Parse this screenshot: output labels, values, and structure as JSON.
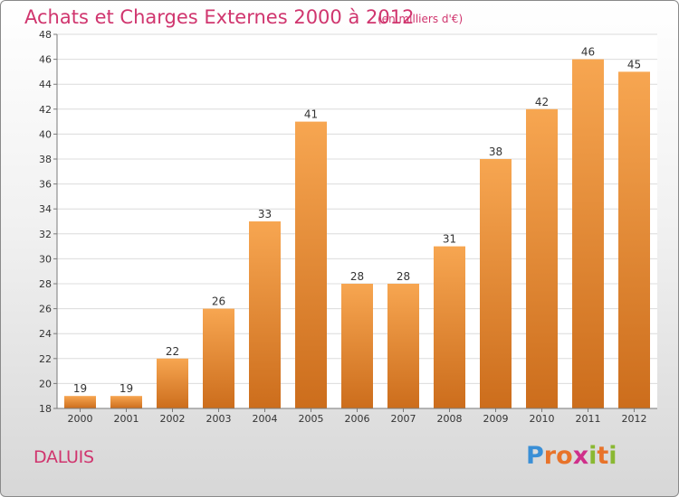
{
  "title": "Achats et Charges Externes 2000 à 2012",
  "subtitle": "(en milliers d'€)",
  "commune": "DALUIS",
  "logo": {
    "letters": [
      "P",
      "r",
      "o",
      "x",
      "i",
      "t",
      "i"
    ],
    "colors": [
      "#3a8fd6",
      "#e8732a",
      "#e8732a",
      "#cf2f8a",
      "#8ab832",
      "#e8732a",
      "#8ab832"
    ]
  },
  "colors": {
    "bar_top": "#f7a651",
    "bar_bottom": "#cc6d1c",
    "title": "#d0356e"
  },
  "chart_data": {
    "type": "bar",
    "categories": [
      "2000",
      "2001",
      "2002",
      "2003",
      "2004",
      "2005",
      "2006",
      "2007",
      "2008",
      "2009",
      "2010",
      "2011",
      "2012"
    ],
    "values": [
      19,
      19,
      22,
      26,
      33,
      41,
      28,
      28,
      31,
      38,
      42,
      46,
      45
    ],
    "y_ticks": [
      "18",
      "20",
      "22",
      "24",
      "26",
      "28",
      "30",
      "32",
      "34",
      "36",
      "38",
      "40",
      "42",
      "44",
      "46",
      "48"
    ],
    "ylim": [
      18,
      48
    ],
    "grid": "horizontal",
    "data_labels": true
  }
}
